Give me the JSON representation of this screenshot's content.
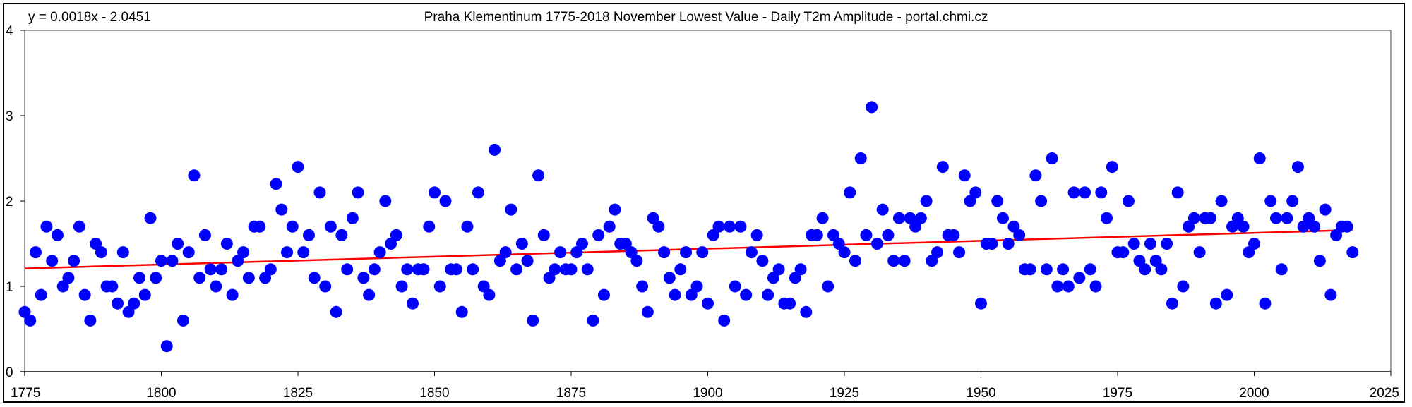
{
  "chart_data": {
    "type": "scatter",
    "title": "Praha Klementinum 1775-2018 November Lowest Value - Daily T2m Amplitude - portal.chmi.cz",
    "trendline_equation": "y = 0.0018x - 2.0451",
    "xlabel": "",
    "ylabel": "",
    "xlim": [
      1775,
      2025
    ],
    "ylim": [
      0,
      4
    ],
    "x_ticks": [
      "1775",
      "1800",
      "1825",
      "1850",
      "1875",
      "1900",
      "1925",
      "1950",
      "1975",
      "2000",
      "2025"
    ],
    "y_ticks": [
      "0",
      "1",
      "2",
      "3",
      "4"
    ],
    "grid": false,
    "legend": "none",
    "colors": {
      "points": "#0000ff",
      "trend": "#ff0000",
      "axis": "#808080",
      "frame": "#000000"
    },
    "trendline": {
      "x": [
        1775,
        2018
      ],
      "y": [
        1.21,
        1.66
      ]
    },
    "x_start": 1775,
    "values": [
      0.7,
      0.6,
      1.4,
      0.9,
      1.7,
      1.3,
      1.6,
      1.0,
      1.1,
      1.3,
      1.7,
      0.9,
      0.6,
      1.5,
      1.4,
      1.0,
      1.0,
      0.8,
      1.4,
      0.7,
      0.8,
      1.1,
      0.9,
      1.8,
      1.1,
      1.3,
      0.3,
      1.3,
      1.5,
      0.6,
      1.4,
      2.3,
      1.1,
      1.6,
      1.2,
      1.0,
      1.2,
      1.5,
      0.9,
      1.3,
      1.4,
      1.1,
      1.7,
      1.7,
      1.1,
      1.2,
      2.2,
      1.9,
      1.4,
      1.7,
      2.4,
      1.4,
      1.6,
      1.1,
      2.1,
      1.0,
      1.7,
      0.7,
      1.6,
      1.2,
      1.8,
      2.1,
      1.1,
      0.9,
      1.2,
      1.4,
      2.0,
      1.5,
      1.6,
      1.0,
      1.2,
      0.8,
      1.2,
      1.2,
      1.7,
      2.1,
      1.0,
      2.0,
      1.2,
      1.2,
      0.7,
      1.7,
      1.2,
      2.1,
      1.0,
      0.9,
      2.6,
      1.3,
      1.4,
      1.9,
      1.2,
      1.5,
      1.3,
      0.6,
      2.3,
      1.6,
      1.1,
      1.2,
      1.4,
      1.2,
      1.2,
      1.4,
      1.5,
      1.2,
      0.6,
      1.6,
      0.9,
      1.7,
      1.9,
      1.5,
      1.5,
      1.4,
      1.3,
      1.0,
      0.7,
      1.8,
      1.7,
      1.4,
      1.1,
      0.9,
      1.2,
      1.4,
      0.9,
      1.0,
      1.4,
      0.8,
      1.6,
      1.7,
      0.6,
      1.7,
      1.0,
      1.7,
      0.9,
      1.4,
      1.6,
      1.3,
      0.9,
      1.1,
      1.2,
      0.8,
      0.8,
      1.1,
      1.2,
      0.7,
      1.6,
      1.6,
      1.8,
      1.0,
      1.6,
      1.5,
      1.4,
      2.1,
      1.3,
      2.5,
      1.6,
      3.1,
      1.5,
      1.9,
      1.6,
      1.3,
      1.8,
      1.3,
      1.8,
      1.7,
      1.8,
      2.0,
      1.3,
      1.4,
      2.4,
      1.6,
      1.6,
      1.4,
      2.3,
      2.0,
      2.1,
      0.8,
      1.5,
      1.5,
      2.0,
      1.8,
      1.5,
      1.7,
      1.6,
      1.2,
      1.2,
      2.3,
      2.0,
      1.2,
      2.5,
      1.0,
      1.2,
      1.0,
      2.1,
      1.1,
      2.1,
      1.2,
      1.0,
      2.1,
      1.8,
      2.4,
      1.4,
      1.4,
      2.0,
      1.5,
      1.3,
      1.2,
      1.5,
      1.3,
      1.2,
      1.5,
      0.8,
      2.1,
      1.0,
      1.7,
      1.8,
      1.4,
      1.8,
      1.8,
      0.8,
      2.0,
      0.9,
      1.7,
      1.8,
      1.7,
      1.4,
      1.5,
      2.5,
      0.8,
      2.0,
      1.8,
      1.2,
      1.8,
      2.0,
      2.4,
      1.7,
      1.8,
      1.7,
      1.3,
      1.9,
      0.9,
      1.6,
      1.7,
      1.7,
      1.4
    ]
  }
}
